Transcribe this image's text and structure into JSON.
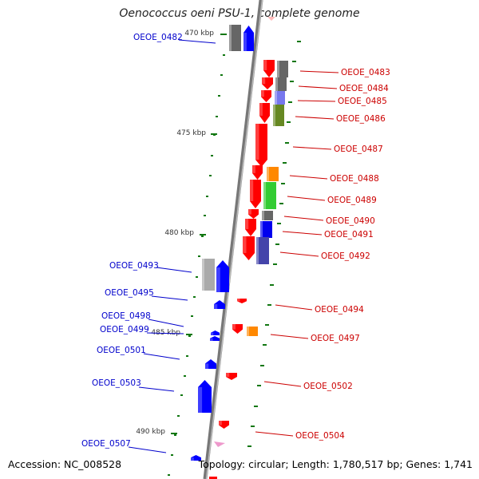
{
  "title": "Oenococcus oeni PSU-1, complete genome",
  "footer": {
    "accession": "Accession: NC_008528",
    "topology": "Topology: circular; Length: 1,780,517 bp; Genes: 1,741"
  },
  "scale_labels": [
    "470 kbp",
    "475 kbp",
    "480 kbp",
    "485 kbp",
    "490 kbp"
  ],
  "colors": {
    "left_label": "#0000cc",
    "right_label": "#cc0000",
    "tick": "#117711",
    "backbone": "#888888"
  },
  "genes": [
    {
      "locus": "OEOE_0482",
      "side": "left",
      "strand": "+",
      "color": "#0000ff",
      "cog_color": "#666666"
    },
    {
      "locus": "OEOE_0483",
      "side": "right",
      "strand": "-",
      "color": "#ff0000",
      "cog_color": "#666666"
    },
    {
      "locus": "OEOE_0484",
      "side": "right",
      "strand": "-",
      "color": "#ff0000",
      "cog_color": "#666666"
    },
    {
      "locus": "OEOE_0485",
      "side": "right",
      "strand": "-",
      "color": "#ff0000",
      "cog_color": "#7777ee"
    },
    {
      "locus": "OEOE_0486",
      "side": "right",
      "strand": "-",
      "color": "#ff0000",
      "cog_color": "#668822"
    },
    {
      "locus": "OEOE_0487",
      "side": "right",
      "strand": "-",
      "color": "#ff0000",
      "cog_color": ""
    },
    {
      "locus": "OEOE_0488",
      "side": "right",
      "strand": "-",
      "color": "#ff0000",
      "cog_color": "#ff8800"
    },
    {
      "locus": "OEOE_0489",
      "side": "right",
      "strand": "-",
      "color": "#ff0000",
      "cog_color": "#33cc33"
    },
    {
      "locus": "OEOE_0490",
      "side": "right",
      "strand": "-",
      "color": "#ff0000",
      "cog_color": "#666666"
    },
    {
      "locus": "OEOE_0491",
      "side": "right",
      "strand": "-",
      "color": "#ff0000",
      "cog_color": "#0000ee"
    },
    {
      "locus": "OEOE_0492",
      "side": "right",
      "strand": "-",
      "color": "#ff0000",
      "cog_color": "#4444aa"
    },
    {
      "locus": "OEOE_0493",
      "side": "left",
      "strand": "+",
      "color": "#0000ff",
      "cog_color": "#aaaaaa"
    },
    {
      "locus": "OEOE_0494",
      "side": "right",
      "strand": "-",
      "color": "#ff0000",
      "cog_color": ""
    },
    {
      "locus": "OEOE_0495",
      "side": "left",
      "strand": "+",
      "color": "#0000ff",
      "cog_color": ""
    },
    {
      "locus": "OEOE_0497",
      "side": "right",
      "strand": "-",
      "color": "#ff0000",
      "cog_color": "#ff8800"
    },
    {
      "locus": "OEOE_0498",
      "side": "left",
      "strand": "+",
      "color": "#0000ff",
      "cog_color": ""
    },
    {
      "locus": "OEOE_0499",
      "side": "left",
      "strand": "+",
      "color": "#0000ff",
      "cog_color": ""
    },
    {
      "locus": "OEOE_0501",
      "side": "left",
      "strand": "+",
      "color": "#0000ff",
      "cog_color": ""
    },
    {
      "locus": "OEOE_0502",
      "side": "right",
      "strand": "-",
      "color": "#ff0000",
      "cog_color": ""
    },
    {
      "locus": "OEOE_0503",
      "side": "left",
      "strand": "+",
      "color": "#0000ff",
      "cog_color": ""
    },
    {
      "locus": "OEOE_0504",
      "side": "right",
      "strand": "-",
      "color": "#ff0000",
      "cog_color": ""
    },
    {
      "locus": "OEOE_0507",
      "side": "left",
      "strand": "+",
      "color": "#0000ff",
      "cog_color": ""
    }
  ]
}
